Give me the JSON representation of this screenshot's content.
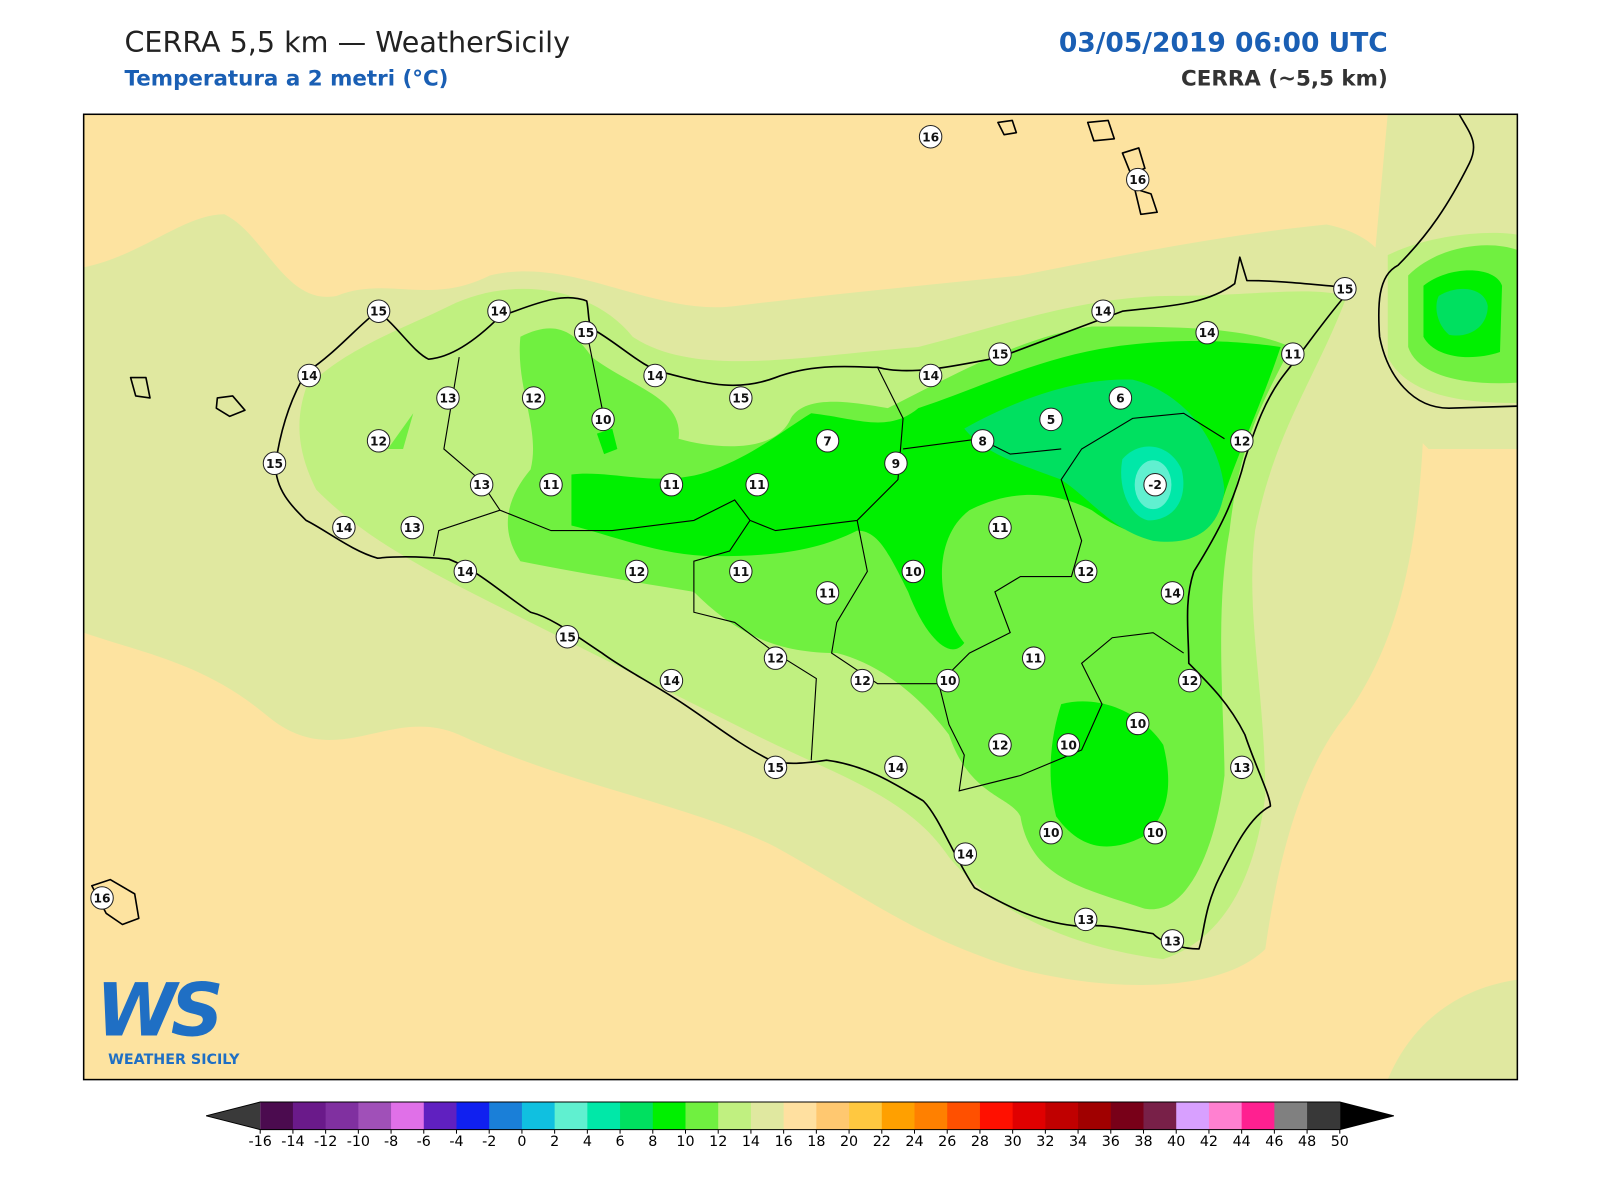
{
  "header": {
    "title": "CERRA 5,5 km — WeatherSicily",
    "subtitle": "Temperatura a 2 metri (°C)",
    "datetime": "03/05/2019 06:00 UTC",
    "model": "CERRA (~5,5 km)"
  },
  "map": {
    "stations": [
      16,
      16,
      15,
      14,
      15,
      14,
      14,
      15,
      14,
      13,
      12,
      14,
      15,
      14,
      15,
      11,
      6,
      5,
      10,
      12,
      7,
      8,
      12,
      15,
      13,
      11,
      11,
      11,
      9,
      -2,
      14,
      13,
      11,
      14,
      12,
      11,
      10,
      12,
      11,
      14,
      15,
      11,
      12,
      14,
      12,
      10,
      12,
      10,
      12,
      10,
      15,
      14,
      13,
      14,
      10,
      10,
      13,
      13,
      16
    ]
  },
  "colorbar": {
    "ticks": [
      -16,
      -14,
      -12,
      -10,
      -8,
      -6,
      -4,
      -2,
      0,
      2,
      4,
      6,
      8,
      10,
      12,
      14,
      16,
      18,
      20,
      22,
      24,
      26,
      28,
      30,
      32,
      34,
      36,
      38,
      40,
      42,
      44,
      46,
      48,
      50
    ],
    "colors": [
      "#4b0b4f",
      "#6a1a8a",
      "#8030a0",
      "#a050b8",
      "#e070e8",
      "#6020c0",
      "#1020f0",
      "#1a7fd8",
      "#10c0e0",
      "#60f0d0",
      "#00e8a8",
      "#00e060",
      "#00f000",
      "#70f040",
      "#c0f080",
      "#e0e8a0",
      "#ffe0a0",
      "#ffc870",
      "#ffc840",
      "#ffa000",
      "#ff8000",
      "#ff5000",
      "#ff1000",
      "#e00000",
      "#c00000",
      "#a00000",
      "#780018",
      "#782048",
      "#d8a0ff",
      "#ff80d0",
      "#ff2090",
      "#808080",
      "#383838"
    ],
    "under_color": "#3a3a3a",
    "over_color": "#000000"
  },
  "logo": {
    "mark": "WS",
    "name": "WEATHER SICILY"
  }
}
